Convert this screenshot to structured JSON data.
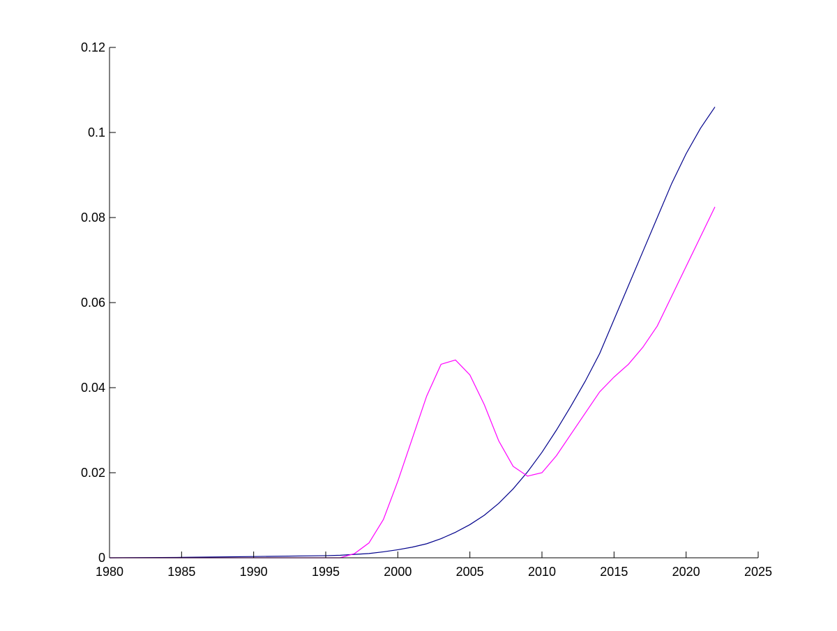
{
  "chart_data": {
    "type": "line",
    "title": "",
    "xlabel": "",
    "ylabel": "",
    "xlim": [
      1980,
      2025
    ],
    "ylim": [
      0,
      0.12
    ],
    "grid": false,
    "legend": "none",
    "x_ticks": [
      "1980",
      "1985",
      "1990",
      "1995",
      "2000",
      "2005",
      "2010",
      "2015",
      "2020",
      "2025"
    ],
    "y_ticks": [
      "0",
      "0.02",
      "0.04",
      "0.06",
      "0.08",
      "0.1",
      "0.12"
    ],
    "series": [
      {
        "color": "#00008b",
        "x": [
          1980,
          1985,
          1990,
          1995,
          1996,
          1997,
          1998,
          1999,
          2000,
          2001,
          2002,
          2003,
          2004,
          2005,
          2006,
          2007,
          2008,
          2009,
          2010,
          2011,
          2012,
          2013,
          2014,
          2015,
          2016,
          2017,
          2018,
          2019,
          2020,
          2021,
          2022
        ],
        "y": [
          0,
          0.0001,
          0.0003,
          0.0005,
          0.0006,
          0.0008,
          0.001,
          0.0014,
          0.0019,
          0.0025,
          0.0033,
          0.0045,
          0.006,
          0.0078,
          0.01,
          0.0128,
          0.0162,
          0.0202,
          0.0248,
          0.03,
          0.0356,
          0.0415,
          0.048,
          0.056,
          0.064,
          0.072,
          0.08,
          0.088,
          0.095,
          0.101,
          0.106
        ]
      },
      {
        "color": "#ff00ff",
        "x": [
          1980,
          1985,
          1990,
          1995,
          1996,
          1997,
          1998,
          1999,
          2000,
          2001,
          2002,
          2003,
          2004,
          2005,
          2006,
          2007,
          2008,
          2009,
          2010,
          2011,
          2012,
          2013,
          2014,
          2015,
          2016,
          2017,
          2018,
          2019,
          2020,
          2021,
          2022
        ],
        "y": [
          0,
          0,
          0,
          0,
          0,
          0.001,
          0.0035,
          0.009,
          0.018,
          0.028,
          0.038,
          0.0455,
          0.0465,
          0.043,
          0.036,
          0.0275,
          0.0215,
          0.0192,
          0.02,
          0.024,
          0.029,
          0.034,
          0.039,
          0.0425,
          0.0455,
          0.0495,
          0.0545,
          0.0615,
          0.0685,
          0.0755,
          0.0825
        ]
      }
    ]
  }
}
